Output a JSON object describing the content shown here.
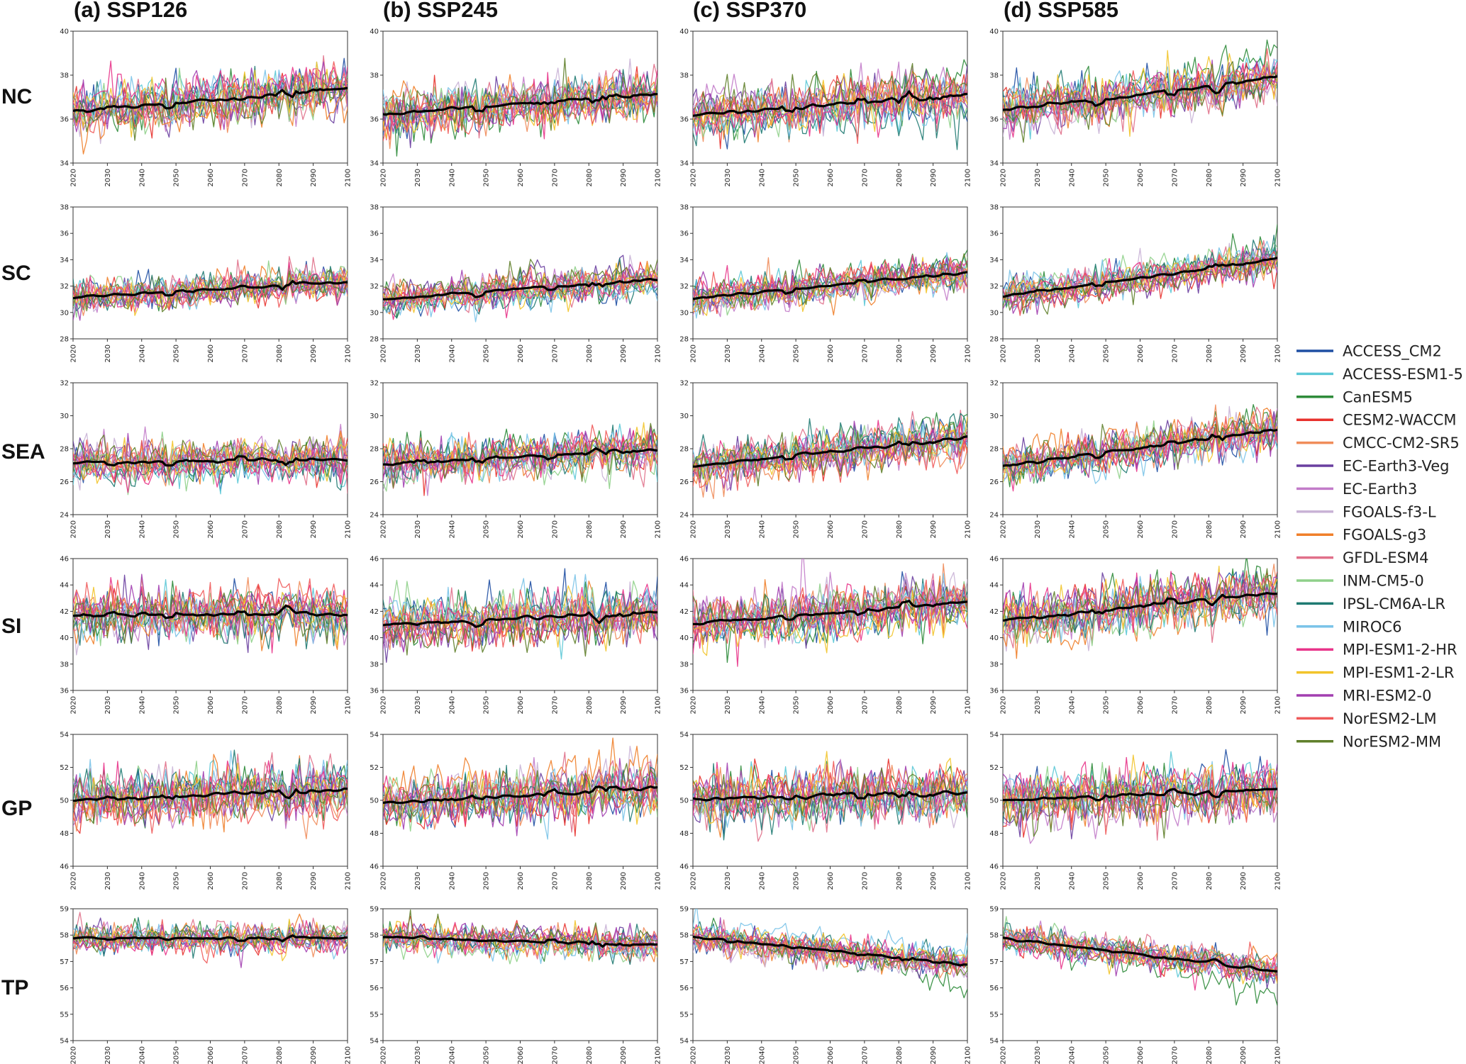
{
  "figure": {
    "column_titles": [
      "(a) SSP126",
      "(b) SSP245",
      "(c) SSP370",
      "(d) SSP585"
    ],
    "row_labels": [
      "NC",
      "SC",
      "SEA",
      "SI",
      "GP",
      "TP"
    ]
  },
  "chart_data": {
    "type": "line",
    "x_ticks": [
      "2020",
      "2030",
      "2040",
      "2050",
      "2060",
      "2070",
      "2080",
      "2090",
      "2100"
    ],
    "xlim": [
      2020,
      2100
    ],
    "ensemble_mean_color": "#000000",
    "models": [
      {
        "name": "ACCESS_CM2",
        "color": "#1f4fa3"
      },
      {
        "name": "ACCESS-ESM1-5",
        "color": "#5bc8d6"
      },
      {
        "name": "CanESM5",
        "color": "#2e8b3a"
      },
      {
        "name": "CESM2-WACCM",
        "color": "#e8322e"
      },
      {
        "name": "CMCC-CM2-SR5",
        "color": "#f08c5a"
      },
      {
        "name": "EC-Earth3-Veg",
        "color": "#6a3fa0"
      },
      {
        "name": "EC-Earth3",
        "color": "#c27bc9"
      },
      {
        "name": "FGOALS-f3-L",
        "color": "#c9b3d6"
      },
      {
        "name": "FGOALS-g3",
        "color": "#f07f2a"
      },
      {
        "name": "GFDL-ESM4",
        "color": "#e0708a"
      },
      {
        "name": "INM-CM5-0",
        "color": "#8fd08a"
      },
      {
        "name": "IPSL-CM6A-LR",
        "color": "#1f7a72"
      },
      {
        "name": "MIROC6",
        "color": "#7ac3e8"
      },
      {
        "name": "MPI-ESM1-2-HR",
        "color": "#e8348a"
      },
      {
        "name": "MPI-ESM1-2-LR",
        "color": "#f2c42a"
      },
      {
        "name": "MRI-ESM2-0",
        "color": "#a23fb0"
      },
      {
        "name": "NorESM2-LM",
        "color": "#ef5a5a"
      },
      {
        "name": "NorESM2-MM",
        "color": "#5f7f2a"
      }
    ],
    "panels": [
      {
        "row": "NC",
        "ylim": [
          34,
          40
        ],
        "yticks": [
          "34",
          "36",
          "38",
          "40"
        ],
        "ensemble_mean_trend": {
          "SSP126": [
            36.3,
            37.3
          ],
          "SSP245": [
            36.3,
            37.2
          ],
          "SSP370": [
            36.2,
            37.1
          ],
          "SSP585": [
            36.4,
            37.8
          ]
        },
        "spread": 0.7
      },
      {
        "row": "SC",
        "ylim": [
          28,
          38
        ],
        "yticks": [
          "28",
          "30",
          "32",
          "34",
          "36",
          "38"
        ],
        "ensemble_mean_trend": {
          "SSP126": [
            31.2,
            32.4
          ],
          "SSP245": [
            31.0,
            32.5
          ],
          "SSP370": [
            31.0,
            32.9
          ],
          "SSP585": [
            31.3,
            34.1
          ]
        },
        "spread": 0.8
      },
      {
        "row": "SEA",
        "ylim": [
          24,
          32
        ],
        "yticks": [
          "24",
          "26",
          "28",
          "30",
          "32"
        ],
        "ensemble_mean_trend": {
          "SSP126": [
            27.2,
            27.4
          ],
          "SSP245": [
            27.0,
            27.9
          ],
          "SSP370": [
            27.0,
            28.7
          ],
          "SSP585": [
            27.0,
            29.1
          ]
        },
        "spread": 0.8
      },
      {
        "row": "SI",
        "ylim": [
          36,
          46
        ],
        "yticks": [
          "36",
          "38",
          "40",
          "42",
          "44",
          "46"
        ],
        "ensemble_mean_trend": {
          "SSP126": [
            41.6,
            41.6
          ],
          "SSP245": [
            41.1,
            42.0
          ],
          "SSP370": [
            41.2,
            42.8
          ],
          "SSP585": [
            41.2,
            43.2
          ]
        },
        "spread": 1.2
      },
      {
        "row": "GP",
        "ylim": [
          46,
          54
        ],
        "yticks": [
          "46",
          "48",
          "50",
          "52",
          "54"
        ],
        "ensemble_mean_trend": {
          "SSP126": [
            50.0,
            50.7
          ],
          "SSP245": [
            49.9,
            50.8
          ],
          "SSP370": [
            50.0,
            50.4
          ],
          "SSP585": [
            50.0,
            50.7
          ]
        },
        "spread": 1.0
      },
      {
        "row": "TP",
        "ylim": [
          54,
          59
        ],
        "yticks": [
          "54",
          "55",
          "56",
          "57",
          "58",
          "59"
        ],
        "ensemble_mean_trend": {
          "SSP126": [
            57.9,
            57.9
          ],
          "SSP245": [
            57.9,
            57.6
          ],
          "SSP370": [
            57.9,
            56.9
          ],
          "SSP585": [
            57.9,
            56.7
          ]
        },
        "spread": 0.35
      }
    ]
  }
}
